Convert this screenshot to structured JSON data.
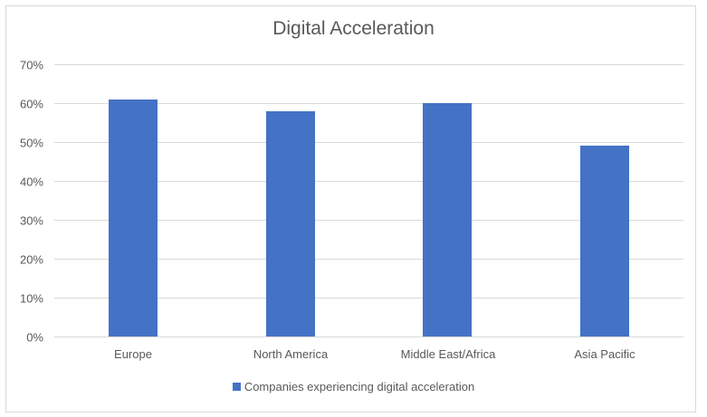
{
  "chart_data": {
    "type": "bar",
    "title": "Digital Acceleration",
    "categories": [
      "Europe",
      "North America",
      "Middle East/Africa",
      "Asia Pacific"
    ],
    "series": [
      {
        "name": "Companies experiencing digital acceleration",
        "values": [
          61,
          58,
          60,
          49
        ],
        "color": "#4472c4"
      }
    ],
    "xlabel": "",
    "ylabel": "",
    "ylim": [
      0,
      70
    ],
    "yticks": [
      "0%",
      "10%",
      "20%",
      "30%",
      "40%",
      "50%",
      "60%",
      "70%"
    ],
    "grid": true,
    "legend_position": "bottom"
  },
  "colors": {
    "bar": "#4472c4",
    "grid": "#d9d9d9",
    "text": "#595959"
  }
}
